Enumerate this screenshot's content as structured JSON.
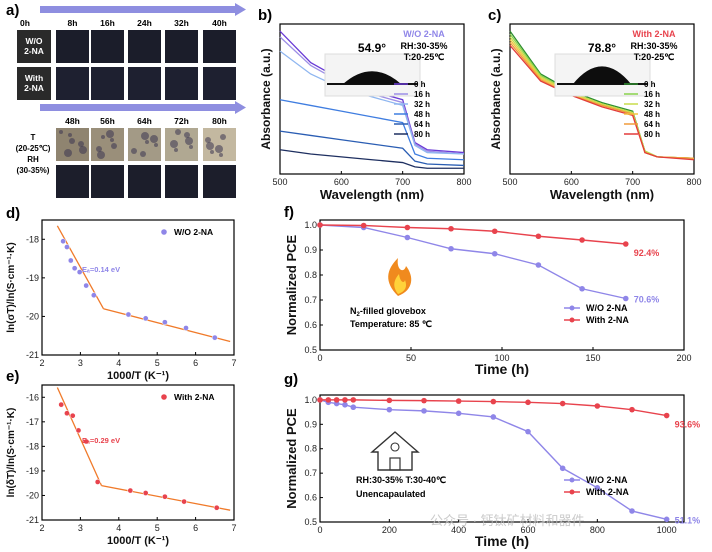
{
  "panel_a": {
    "letter": "a)",
    "time_row1": [
      "0h",
      "8h",
      "16h",
      "24h",
      "32h",
      "40h"
    ],
    "time_row2": [
      "48h",
      "56h",
      "64h",
      "72h",
      "80h"
    ],
    "row_label_wo": [
      "W/O",
      "2-NA"
    ],
    "row_label_with": [
      "With",
      "2-NA"
    ],
    "cond_label": [
      "T",
      "(20-25℃)",
      "RH",
      "(30-35%)"
    ],
    "colors": {
      "dark_film": "#1b1d2a",
      "label_box": "#2a2a2a",
      "degraded": "#9a8f7a",
      "arrow": "#8e8ee0"
    }
  },
  "chart_data": [
    {
      "id": "b",
      "type": "line",
      "title": "W/O 2-NA",
      "xlabel": "Wavelength (nm)",
      "ylabel": "Absorbance (a.u.)",
      "xlim": [
        500,
        800
      ],
      "xticks": [
        500,
        600,
        700,
        800
      ],
      "contact_angle": "54.9°",
      "conditions": [
        "RH:30-35%",
        "T:20-25℃"
      ],
      "x": [
        500,
        550,
        600,
        650,
        700,
        720,
        740,
        800
      ],
      "series": [
        {
          "name": "0 h",
          "color": "#6a3bd6",
          "values": [
            1.0,
            0.78,
            0.66,
            0.58,
            0.52,
            0.22,
            0.17,
            0.15
          ]
        },
        {
          "name": "16 h",
          "color": "#9d8fe6",
          "values": [
            0.96,
            0.76,
            0.64,
            0.56,
            0.5,
            0.21,
            0.16,
            0.14
          ]
        },
        {
          "name": "32 h",
          "color": "#8fb6f0",
          "values": [
            0.86,
            0.7,
            0.6,
            0.54,
            0.48,
            0.2,
            0.15,
            0.14
          ]
        },
        {
          "name": "48 h",
          "color": "#3f7de0",
          "values": [
            0.52,
            0.48,
            0.44,
            0.4,
            0.36,
            0.14,
            0.11,
            0.1
          ]
        },
        {
          "name": "64 h",
          "color": "#2a5db3",
          "values": [
            0.3,
            0.27,
            0.24,
            0.21,
            0.18,
            0.09,
            0.07,
            0.06
          ]
        },
        {
          "name": "80 h",
          "color": "#1e2f60",
          "values": [
            0.17,
            0.14,
            0.12,
            0.1,
            0.08,
            0.05,
            0.04,
            0.04
          ]
        }
      ]
    },
    {
      "id": "c",
      "type": "line",
      "title": "With 2-NA",
      "xlabel": "Wavelength (nm)",
      "ylabel": "Absorbance (a.u.)",
      "xlim": [
        500,
        800
      ],
      "xticks": [
        500,
        600,
        700,
        800
      ],
      "contact_angle": "78.8°",
      "conditions": [
        "RH:30-35%",
        "T:20-25℃"
      ],
      "x": [
        500,
        550,
        600,
        650,
        700,
        720,
        740,
        800
      ],
      "series": [
        {
          "name": "0 h",
          "color": "#2f8f2f",
          "values": [
            1.0,
            0.7,
            0.58,
            0.5,
            0.44,
            0.16,
            0.12,
            0.11
          ]
        },
        {
          "name": "16 h",
          "color": "#8ad34d",
          "values": [
            0.98,
            0.69,
            0.57,
            0.49,
            0.43,
            0.16,
            0.12,
            0.11
          ]
        },
        {
          "name": "32 h",
          "color": "#c9dc4a",
          "values": [
            0.96,
            0.68,
            0.57,
            0.49,
            0.43,
            0.16,
            0.12,
            0.11
          ]
        },
        {
          "name": "48 h",
          "color": "#f2c240",
          "values": [
            0.94,
            0.67,
            0.56,
            0.48,
            0.42,
            0.15,
            0.12,
            0.11
          ]
        },
        {
          "name": "64 h",
          "color": "#f09a3a",
          "values": [
            0.92,
            0.66,
            0.55,
            0.48,
            0.42,
            0.15,
            0.12,
            0.11
          ]
        },
        {
          "name": "80 h",
          "color": "#e23b3b",
          "values": [
            0.9,
            0.65,
            0.55,
            0.47,
            0.41,
            0.15,
            0.12,
            0.1
          ]
        }
      ]
    },
    {
      "id": "d",
      "type": "scatter",
      "legend": "W/O 2-NA",
      "xlabel": "1000/T (K⁻¹)",
      "ylabel": "ln(σT)/ln(S·cm⁻¹·K)",
      "xlim": [
        2,
        7
      ],
      "ylim": [
        -21,
        -17.5
      ],
      "xticks": [
        2,
        3,
        4,
        5,
        6,
        7
      ],
      "yticks": [
        -18,
        -19,
        -20,
        -21
      ],
      "annotation": "Eₐ=0.14 eV",
      "marker_color": "#8f86e8",
      "fit_color": "#f07a2a",
      "x": [
        2.55,
        2.65,
        2.75,
        2.85,
        2.98,
        3.15,
        3.35,
        4.25,
        4.7,
        5.2,
        5.75,
        6.5
      ],
      "y": [
        -18.05,
        -18.2,
        -18.55,
        -18.75,
        -18.85,
        -19.2,
        -19.45,
        -19.95,
        -20.05,
        -20.15,
        -20.3,
        -20.55
      ],
      "fits": [
        {
          "x": [
            2.4,
            3.6
          ],
          "y": [
            -17.65,
            -19.8
          ]
        },
        {
          "x": [
            3.6,
            6.9
          ],
          "y": [
            -19.8,
            -20.65
          ]
        }
      ]
    },
    {
      "id": "e",
      "type": "scatter",
      "legend": "With 2-NA",
      "xlabel": "1000/T (K⁻¹)",
      "ylabel": "ln(δT)/ln(S·cm⁻¹·K)",
      "xlim": [
        2,
        7
      ],
      "ylim": [
        -21,
        -15.5
      ],
      "xticks": [
        2,
        3,
        4,
        5,
        6,
        7
      ],
      "yticks": [
        -16,
        -17,
        -18,
        -19,
        -20,
        -21
      ],
      "annotation": "Eₐ=0.29 eV",
      "marker_color": "#e8434d",
      "fit_color": "#f07a2a",
      "x": [
        2.5,
        2.65,
        2.8,
        2.95,
        3.15,
        3.45,
        4.3,
        4.7,
        5.2,
        5.7,
        6.55
      ],
      "y": [
        -16.3,
        -16.65,
        -16.75,
        -17.35,
        -17.8,
        -19.45,
        -19.8,
        -19.9,
        -20.05,
        -20.25,
        -20.5
      ],
      "fits": [
        {
          "x": [
            2.4,
            3.55
          ],
          "y": [
            -15.6,
            -19.6
          ]
        },
        {
          "x": [
            3.55,
            6.9
          ],
          "y": [
            -19.6,
            -20.6
          ]
        }
      ]
    },
    {
      "id": "f",
      "type": "line",
      "xlabel": "Time (h)",
      "ylabel": "Normalized PCE",
      "xlim": [
        0,
        200
      ],
      "ylim": [
        0.5,
        1.02
      ],
      "xticks": [
        0,
        50,
        100,
        150,
        200
      ],
      "yticks": [
        0.5,
        0.6,
        0.7,
        0.8,
        0.9,
        1.0
      ],
      "inset_label_prefix": "N",
      "inset_label_sub": "2",
      "inset_label_suffix": "-filled glovebox",
      "temperature": "Temperature: 85 ℃",
      "x": [
        0,
        24,
        48,
        72,
        96,
        120,
        144,
        168
      ],
      "series": [
        {
          "name": "W/O 2-NA",
          "color": "#8f86e8",
          "values": [
            1.0,
            0.99,
            0.95,
            0.905,
            0.885,
            0.84,
            0.745,
            0.706
          ],
          "end_label": "70.6%"
        },
        {
          "name": "With 2-NA",
          "color": "#e8434d",
          "values": [
            1.0,
            0.998,
            0.99,
            0.985,
            0.975,
            0.955,
            0.94,
            0.924
          ],
          "end_label": "92.4%"
        }
      ]
    },
    {
      "id": "g",
      "type": "line",
      "xlabel": "Time (h)",
      "ylabel": "Normalized PCE",
      "xlim": [
        0,
        1050
      ],
      "ylim": [
        0.5,
        1.02
      ],
      "xticks": [
        0,
        200,
        400,
        600,
        800,
        1000
      ],
      "yticks": [
        0.5,
        0.6,
        0.7,
        0.8,
        0.9,
        1.0
      ],
      "conditions": "RH:30-35%   T:30-40℃",
      "note": "Unencapaulated",
      "x": [
        0,
        24,
        48,
        72,
        96,
        200,
        300,
        400,
        500,
        600,
        700,
        800,
        900,
        1000
      ],
      "series": [
        {
          "name": "W/O 2-NA",
          "color": "#8f86e8",
          "values": [
            1.0,
            0.99,
            0.985,
            0.98,
            0.97,
            0.96,
            0.955,
            0.945,
            0.93,
            0.87,
            0.72,
            0.64,
            0.545,
            0.511
          ],
          "end_label": "51.1%"
        },
        {
          "name": "With 2-NA",
          "color": "#e8434d",
          "values": [
            1.0,
            1.0,
            1.0,
            1.0,
            1.0,
            0.998,
            0.997,
            0.995,
            0.993,
            0.99,
            0.985,
            0.975,
            0.96,
            0.936
          ],
          "end_label": "93.6%"
        }
      ]
    }
  ],
  "watermark": "公众号 · 钙钛矿材料和器件"
}
